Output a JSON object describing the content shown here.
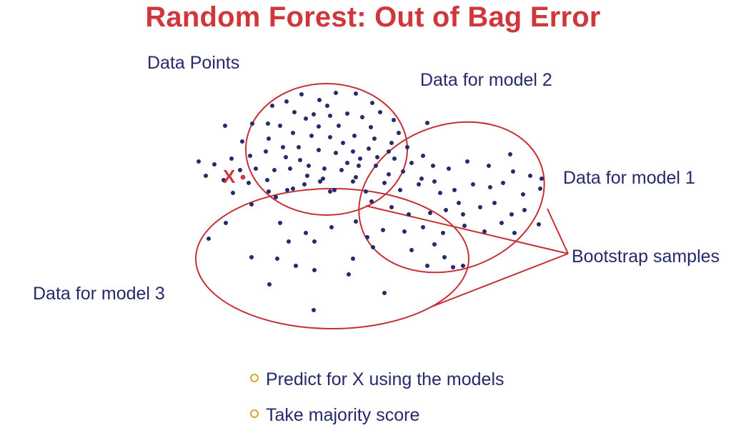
{
  "title": "Random Forest: Out of Bag Error",
  "labels": {
    "data_points": "Data Points",
    "model2": "Data for model 2",
    "model1": "Data for model 1",
    "model3": "Data for model 3",
    "bootstrap": "Bootstrap samples",
    "x_point": "X"
  },
  "bullets": [
    {
      "text": "Predict for X using the models",
      "icon": "hollow-circle-bullet"
    },
    {
      "text": "Take majority score",
      "icon": "hollow-circle-bullet"
    }
  ],
  "colors": {
    "title": "#d0373c",
    "text": "#26296b",
    "dots": "#26296b",
    "outline": "#c62f36",
    "bullet": "#d9a52b"
  }
}
